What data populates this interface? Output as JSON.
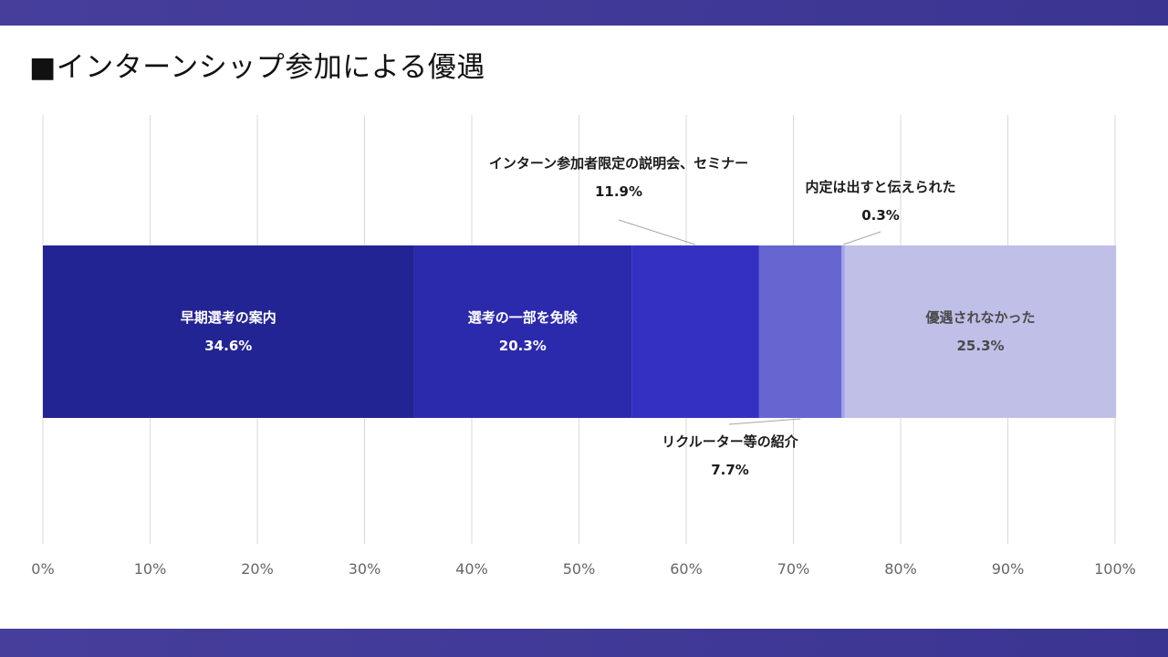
{
  "title": "■インターンシップ参加による優遇",
  "colors": {
    "band": "#433b98",
    "grid": "#d9d9d9",
    "leader": "#a6a6a6"
  },
  "chart_data": {
    "type": "bar",
    "orientation": "horizontal",
    "stacked": true,
    "xlim": [
      0,
      100
    ],
    "x_ticks": [
      "0%",
      "10%",
      "20%",
      "30%",
      "40%",
      "50%",
      "60%",
      "70%",
      "80%",
      "90%",
      "100%"
    ],
    "grid": true,
    "legend": "none",
    "series": [
      {
        "name": "早期選考の案内",
        "value": 34.6,
        "value_label": "34.6%",
        "color": "#232494",
        "label_position": "inside"
      },
      {
        "name": "選考の一部を免除",
        "value": 20.3,
        "value_label": "20.3%",
        "color": "#2c2aac",
        "label_position": "inside"
      },
      {
        "name": "インターン参加者限定の説明会、セミナー",
        "value": 11.9,
        "value_label": "11.9%",
        "color": "#3330c2",
        "label_position": "above"
      },
      {
        "name": "リクルーター等の紹介",
        "value": 7.7,
        "value_label": "7.7%",
        "color": "#6766d1",
        "label_position": "below"
      },
      {
        "name": "内定は出すと伝えられた",
        "value": 0.3,
        "value_label": "0.3%",
        "color": "#a6a5e3",
        "label_position": "above"
      },
      {
        "name": "優遇されなかった",
        "value": 25.3,
        "value_label": "25.3%",
        "color": "#c0bfe8",
        "label_position": "inside"
      }
    ]
  }
}
